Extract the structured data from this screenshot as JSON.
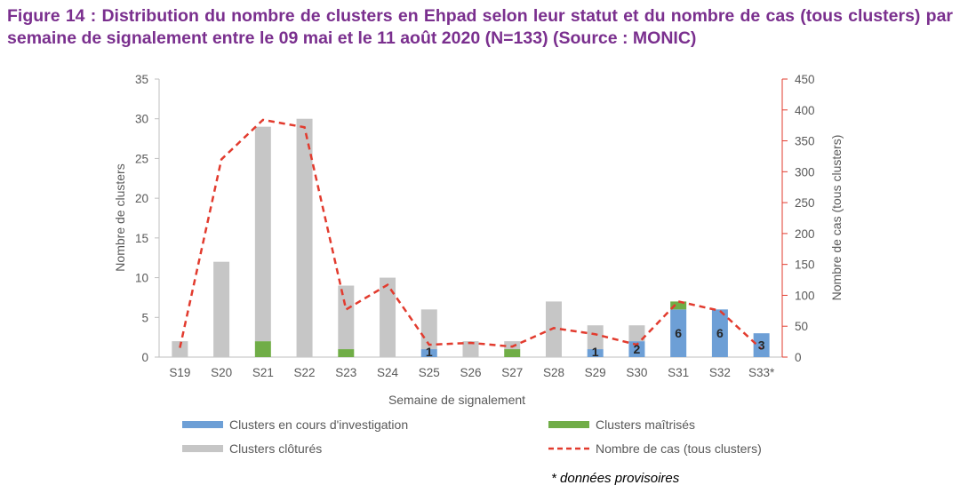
{
  "title": "Figure 14 : Distribution du nombre de clusters en Ehpad selon leur statut et du nombre de cas (tous clusters) par semaine de signalement entre le 09 mai et le 11 août 2020 (N=133) (Source : MONIC)",
  "footnote": "* données provisoires",
  "colors": {
    "title": "#7a2f8e",
    "investigation": "#6d9fd6",
    "maitrises": "#70ad47",
    "clotures": "#c6c6c6",
    "cases_line": "#e23b2e"
  },
  "chart_data": {
    "type": "bar",
    "stacked": true,
    "categories": [
      "S19",
      "S20",
      "S21",
      "S22",
      "S23",
      "S24",
      "S25",
      "S26",
      "S27",
      "S28",
      "S29",
      "S30",
      "S31",
      "S32",
      "S33*"
    ],
    "xlabel": "Semaine de signalement",
    "ylabel": "Nombre de clusters",
    "ylim": [
      0,
      35
    ],
    "yticks": [
      0,
      5,
      10,
      15,
      20,
      25,
      30,
      35
    ],
    "y2label": "Nombre de cas (tous clusters)",
    "y2lim": [
      0,
      450
    ],
    "y2ticks": [
      0,
      50,
      100,
      150,
      200,
      250,
      300,
      350,
      400,
      450
    ],
    "grid": false,
    "legend_position": "bottom",
    "series": [
      {
        "name": "Clusters en cours d'investigation",
        "kind": "bar",
        "axis": "left",
        "values": [
          0,
          0,
          0,
          0,
          0,
          0,
          1,
          0,
          0,
          0,
          1,
          2,
          6,
          6,
          3
        ],
        "data_labels": [
          null,
          null,
          null,
          null,
          null,
          null,
          "1",
          null,
          null,
          null,
          "1",
          "2",
          "6",
          "6",
          "3"
        ]
      },
      {
        "name": "Clusters maîtrisés",
        "kind": "bar",
        "axis": "left",
        "values": [
          0,
          0,
          2,
          0,
          1,
          0,
          0,
          0,
          1,
          0,
          0,
          0,
          1,
          0,
          0
        ]
      },
      {
        "name": "Clusters clôturés",
        "kind": "bar",
        "axis": "left",
        "values": [
          2,
          12,
          27,
          30,
          8,
          10,
          5,
          2,
          1,
          7,
          3,
          2,
          0,
          0,
          0
        ]
      },
      {
        "name": "Nombre de cas (tous clusters)",
        "kind": "line",
        "axis": "right",
        "style": "dashed",
        "values": [
          15,
          320,
          384,
          372,
          77,
          117,
          20,
          23,
          17,
          47,
          37,
          20,
          90,
          75,
          13
        ]
      }
    ]
  }
}
